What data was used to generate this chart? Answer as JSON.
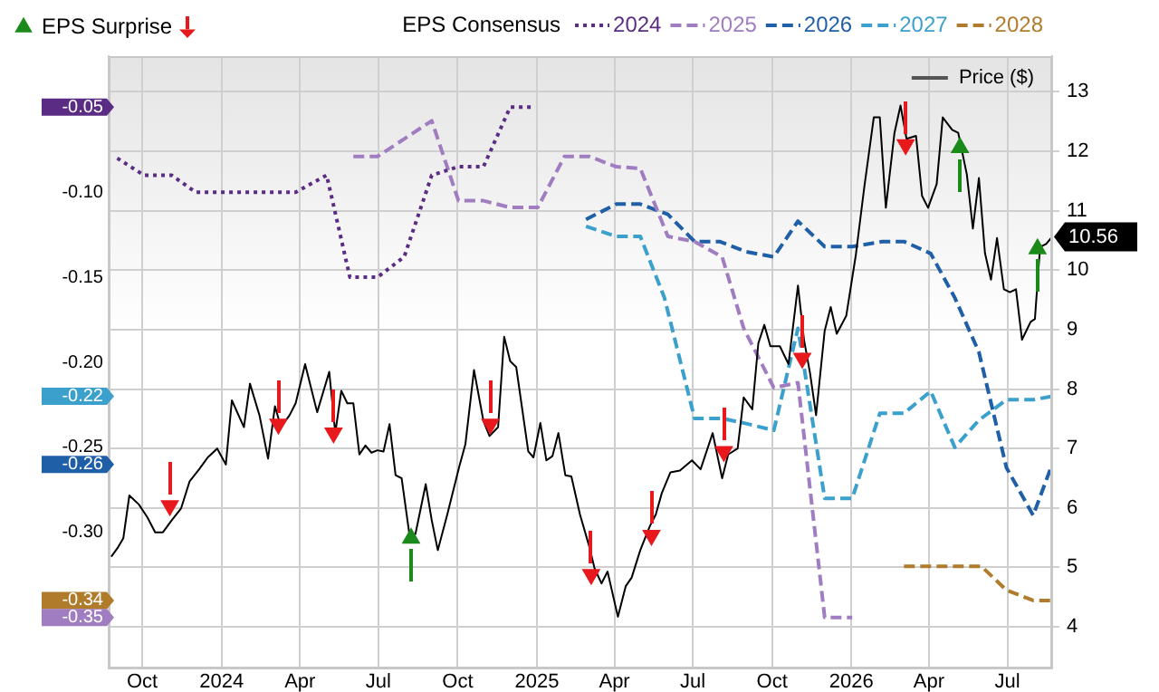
{
  "chart_data": {
    "type": "line",
    "legend_title": "EPS Consensus",
    "legend": "top",
    "grid": true,
    "xlim": [
      "2023-08-23",
      "2026-08-22"
    ],
    "xticks": [
      {
        "value": "2023-10",
        "label": "Oct"
      },
      {
        "value": "2024-01",
        "label": "2024"
      },
      {
        "value": "2024-04",
        "label": "Apr"
      },
      {
        "value": "2024-07",
        "label": "Jul"
      },
      {
        "value": "2024-10",
        "label": "Oct"
      },
      {
        "value": "2025-01",
        "label": "2025"
      },
      {
        "value": "2025-04",
        "label": "Apr"
      },
      {
        "value": "2025-07",
        "label": "Jul"
      },
      {
        "value": "2025-10",
        "label": "Oct"
      },
      {
        "value": "2026-01",
        "label": "2026"
      },
      {
        "value": "2026-04",
        "label": "Apr"
      },
      {
        "value": "2026-07",
        "label": "Jul"
      }
    ],
    "ylim": [
      -0.38,
      -0.02
    ],
    "yticks": [
      {
        "value": -0.05,
        "label": "-0.05"
      },
      {
        "value": -0.1,
        "label": "-0.10"
      },
      {
        "value": -0.15,
        "label": "-0.15"
      },
      {
        "value": -0.2,
        "label": "-0.20"
      },
      {
        "value": -0.22,
        "label": "-0.22"
      },
      {
        "value": -0.25,
        "label": "-0.25"
      },
      {
        "value": -0.26,
        "label": "-0.26"
      },
      {
        "value": -0.3,
        "label": "-0.30"
      },
      {
        "value": -0.34,
        "label": "-0.34"
      },
      {
        "value": -0.35,
        "label": "-0.35"
      }
    ],
    "y2lim": [
      3.3,
      13.6
    ],
    "y2ticks": [
      4,
      5,
      6,
      7,
      8,
      9,
      10,
      {
        "value": 10.56,
        "label": "10.56"
      },
      11,
      12,
      13
    ],
    "series": [
      {
        "name": "2024",
        "type": "line",
        "color": "#5b2c83",
        "line_style": "dotted",
        "x": [
          "2023-09-02",
          "2023-10-03",
          "2023-11-04",
          "2023-12-02",
          "2024-03-27",
          "2024-05-02",
          "2024-05-29",
          "2024-06-30",
          "2024-07-31",
          "2024-09-01",
          "2024-10-02",
          "2024-10-31",
          "2024-12-01",
          "2024-12-29"
        ],
        "values": [
          -0.08,
          -0.09,
          -0.09,
          -0.1,
          -0.1,
          -0.09,
          -0.15,
          -0.15,
          -0.138,
          -0.09,
          -0.085,
          -0.085,
          -0.05,
          -0.05
        ]
      },
      {
        "name": "2025",
        "type": "line",
        "color": "#a07cc0",
        "line_style": "dashed",
        "x": [
          "2024-06-02",
          "2024-06-30",
          "2024-09-01",
          "2024-10-02",
          "2024-10-31",
          "2024-12-01",
          "2025-01-02",
          "2025-02-02",
          "2025-03-03",
          "2025-04-03",
          "2025-05-01",
          "2025-06-02",
          "2025-07-03",
          "2025-08-04",
          "2025-08-29",
          "2025-10-03",
          "2025-10-31",
          "2025-12-01",
          "2026-01-02"
        ],
        "values": [
          -0.079,
          -0.079,
          -0.058,
          -0.105,
          -0.105,
          -0.109,
          -0.109,
          -0.079,
          -0.079,
          -0.085,
          -0.086,
          -0.126,
          -0.129,
          -0.138,
          -0.18,
          -0.215,
          -0.212,
          -0.35,
          -0.35
        ]
      },
      {
        "name": "2026",
        "type": "line",
        "color": "#1f5fa8",
        "line_style": "dashed",
        "x": [
          "2025-02-27",
          "2025-04-03",
          "2025-05-01",
          "2025-06-02",
          "2025-07-03",
          "2025-08-01",
          "2025-09-01",
          "2025-10-03",
          "2025-10-31",
          "2025-12-01",
          "2026-01-02",
          "2026-02-06",
          "2026-03-03",
          "2026-04-03",
          "2026-05-01",
          "2026-05-29",
          "2026-06-30",
          "2026-07-31",
          "2026-08-22"
        ],
        "values": [
          -0.116,
          -0.107,
          -0.107,
          -0.113,
          -0.129,
          -0.129,
          -0.135,
          -0.138,
          -0.117,
          -0.132,
          -0.132,
          -0.129,
          -0.129,
          -0.136,
          -0.162,
          -0.194,
          -0.262,
          -0.29,
          -0.26
        ]
      },
      {
        "name": "2027",
        "type": "line",
        "color": "#3ba0cc",
        "line_style": "dashed",
        "x": [
          "2025-02-27",
          "2025-04-03",
          "2025-05-01",
          "2025-05-29",
          "2025-07-03",
          "2025-08-04",
          "2025-09-01",
          "2025-10-03",
          "2025-10-31",
          "2025-12-01",
          "2026-01-02",
          "2026-02-03",
          "2026-03-03",
          "2026-04-03",
          "2026-05-01",
          "2026-05-29",
          "2026-06-30",
          "2026-07-31",
          "2026-08-22"
        ],
        "values": [
          -0.12,
          -0.126,
          -0.126,
          -0.162,
          -0.233,
          -0.233,
          -0.236,
          -0.24,
          -0.18,
          -0.28,
          -0.28,
          -0.23,
          -0.23,
          -0.217,
          -0.25,
          -0.234,
          -0.222,
          -0.222,
          -0.22
        ]
      },
      {
        "name": "2028",
        "type": "line",
        "color": "#b07c2c",
        "line_style": "dashed",
        "x": [
          "2026-03-03",
          "2026-04-03",
          "2026-06-01",
          "2026-06-30",
          "2026-07-31",
          "2026-08-22"
        ],
        "values": [
          -0.32,
          -0.32,
          -0.32,
          -0.334,
          -0.34,
          -0.34
        ]
      },
      {
        "name": "Price ($)",
        "type": "line",
        "axis": "y2",
        "color": "#000000",
        "line_style": "solid",
        "x": [
          "2023-08-26",
          "2023-09-03",
          "2023-09-09",
          "2023-09-16",
          "2023-09-27",
          "2023-10-07",
          "2023-10-16",
          "2023-10-25",
          "2023-11-04",
          "2023-11-15",
          "2023-11-25",
          "2023-12-06",
          "2023-12-16",
          "2023-12-27",
          "2024-01-06",
          "2024-01-13",
          "2024-01-27",
          "2024-02-03",
          "2024-02-14",
          "2024-02-24",
          "2024-03-03",
          "2024-03-10",
          "2024-03-20",
          "2024-03-27",
          "2024-04-07",
          "2024-04-21",
          "2024-05-05",
          "2024-05-12",
          "2024-05-19",
          "2024-05-26",
          "2024-06-02",
          "2024-06-09",
          "2024-06-16",
          "2024-06-23",
          "2024-06-30",
          "2024-07-07",
          "2024-07-14",
          "2024-07-21",
          "2024-07-28",
          "2024-08-06",
          "2024-08-13",
          "2024-08-25",
          "2024-09-01",
          "2024-09-08",
          "2024-09-19",
          "2024-10-03",
          "2024-10-10",
          "2024-10-20",
          "2024-10-31",
          "2024-11-07",
          "2024-11-17",
          "2024-11-24",
          "2024-12-01",
          "2024-12-08",
          "2024-12-22",
          "2024-12-28",
          "2025-01-05",
          "2025-01-12",
          "2025-01-19",
          "2025-01-26",
          "2025-02-03",
          "2025-02-10",
          "2025-02-20",
          "2025-03-03",
          "2025-03-09",
          "2025-03-17",
          "2025-03-24",
          "2025-04-05",
          "2025-04-14",
          "2025-04-21",
          "2025-05-01",
          "2025-05-12",
          "2025-05-19",
          "2025-05-26",
          "2025-06-05",
          "2025-06-16",
          "2025-06-30",
          "2025-07-10",
          "2025-07-24",
          "2025-08-04",
          "2025-08-11",
          "2025-08-22",
          "2025-08-29",
          "2025-09-08",
          "2025-09-15",
          "2025-09-22",
          "2025-09-29",
          "2025-10-10",
          "2025-10-20",
          "2025-10-31",
          "2025-11-07",
          "2025-11-14",
          "2025-11-21",
          "2025-12-01",
          "2025-12-08",
          "2025-12-15",
          "2025-12-26",
          "2026-01-06",
          "2026-01-16",
          "2026-01-27",
          "2026-02-03",
          "2026-02-10",
          "2026-02-20",
          "2026-02-27",
          "2026-03-06",
          "2026-03-17",
          "2026-03-24",
          "2026-03-31",
          "2026-04-10",
          "2026-04-17",
          "2026-04-28",
          "2026-05-05",
          "2026-05-15",
          "2026-05-22",
          "2026-05-29",
          "2026-06-05",
          "2026-06-12",
          "2026-06-19",
          "2026-06-27",
          "2026-07-04",
          "2026-07-11",
          "2026-07-18",
          "2026-07-28",
          "2026-08-02",
          "2026-08-08",
          "2026-08-15",
          "2026-08-22"
        ],
        "values": [
          5.18,
          5.34,
          5.49,
          6.21,
          6.06,
          5.84,
          5.59,
          5.59,
          5.79,
          5.99,
          6.45,
          6.65,
          6.85,
          7.0,
          6.73,
          7.81,
          7.36,
          8.09,
          7.56,
          6.83,
          7.71,
          7.36,
          7.56,
          7.76,
          8.42,
          7.61,
          8.29,
          7.26,
          7.97,
          7.76,
          7.76,
          6.9,
          7.05,
          6.93,
          6.97,
          6.95,
          7.41,
          6.55,
          6.5,
          5.56,
          5.56,
          6.4,
          5.79,
          5.29,
          5.89,
          6.7,
          7.07,
          8.32,
          7.46,
          7.21,
          7.36,
          8.88,
          8.47,
          8.37,
          6.95,
          6.85,
          7.43,
          6.8,
          6.87,
          7.26,
          6.55,
          6.53,
          5.89,
          5.34,
          4.98,
          4.73,
          4.93,
          4.17,
          4.68,
          4.83,
          5.29,
          5.69,
          5.89,
          6.25,
          6.6,
          6.63,
          6.8,
          6.65,
          7.26,
          6.5,
          6.9,
          7.0,
          7.86,
          7.66,
          8.77,
          9.08,
          8.72,
          8.72,
          8.42,
          9.74,
          8.83,
          8.27,
          7.56,
          8.98,
          9.38,
          8.93,
          9.23,
          10.24,
          11.4,
          12.57,
          12.57,
          11.05,
          12.31,
          12.77,
          12.21,
          12.26,
          11.25,
          11.05,
          11.45,
          12.57,
          12.36,
          12.31,
          11.61,
          10.7,
          11.55,
          10.29,
          9.84,
          10.54,
          9.68,
          9.63,
          9.68,
          8.83,
          9.13,
          9.18,
          10.39,
          10.44,
          10.56
        ]
      },
      {
        "name": "EPS Surprise",
        "type": "scatter",
        "axis": "y2",
        "color": "#1a8a1a",
        "marker": "triangle",
        "x": [
          "2024-08-08",
          "2026-05-07",
          "2026-08-05"
        ],
        "values": [
          5.49,
          12.06,
          10.36
        ]
      },
      {
        "type": "scatter",
        "axis": "y2",
        "color": "#e8191c",
        "marker": "triangle",
        "x": [
          "2023-11-02",
          "2024-03-07",
          "2024-05-10",
          "2024-11-08",
          "2025-03-05",
          "2025-05-14",
          "2025-08-06",
          "2025-11-05",
          "2026-03-05"
        ],
        "values": [
          6.04,
          7.41,
          7.26,
          7.41,
          4.88,
          5.54,
          6.95,
          8.52,
          12.11
        ]
      }
    ]
  }
}
